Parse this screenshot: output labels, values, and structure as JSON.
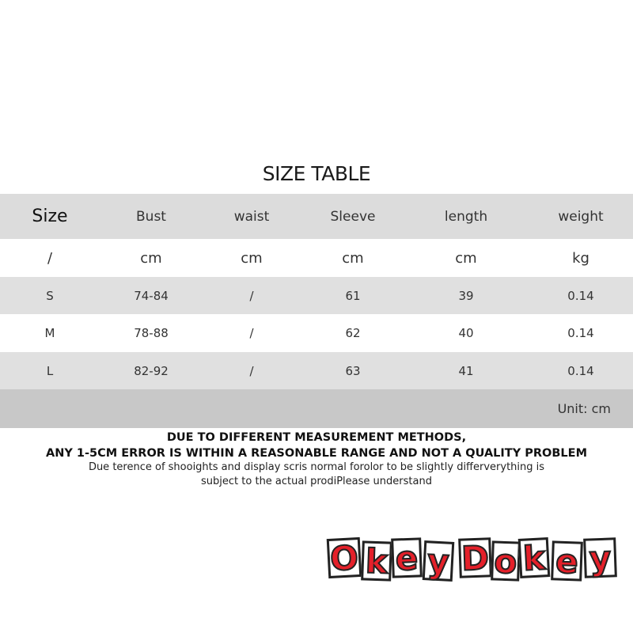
{
  "title": "SIZE TABLE",
  "table": {
    "header": [
      "Size",
      "Bust",
      "waist",
      "Sleeve",
      "length",
      "weight"
    ],
    "rows": [
      [
        "/",
        "cm",
        "cm",
        "cm",
        "cm",
        "kg"
      ],
      [
        "S",
        "74-84",
        "/",
        "61",
        "39",
        "0.14"
      ],
      [
        "M",
        "78-88",
        "/",
        "62",
        "40",
        "0.14"
      ],
      [
        "L",
        "82-92",
        "/",
        "63",
        "41",
        "0.14"
      ]
    ],
    "unit_note": "Unit: cm"
  },
  "notes": [
    "DUE TO DIFFERENT MEASUREMENT METHODS,",
    "ANY 1-5CM ERROR IS WITHIN A REASONABLE RANGE AND NOT A QUALITY PROBLEM",
    "Due terence of shooights and display scris normal forolor to be slightly differverything is",
    "subject to the actual prodiPlease understand"
  ],
  "logo": [
    "O",
    "k",
    "e",
    "y",
    "D",
    "o",
    "k",
    "e",
    "y"
  ]
}
